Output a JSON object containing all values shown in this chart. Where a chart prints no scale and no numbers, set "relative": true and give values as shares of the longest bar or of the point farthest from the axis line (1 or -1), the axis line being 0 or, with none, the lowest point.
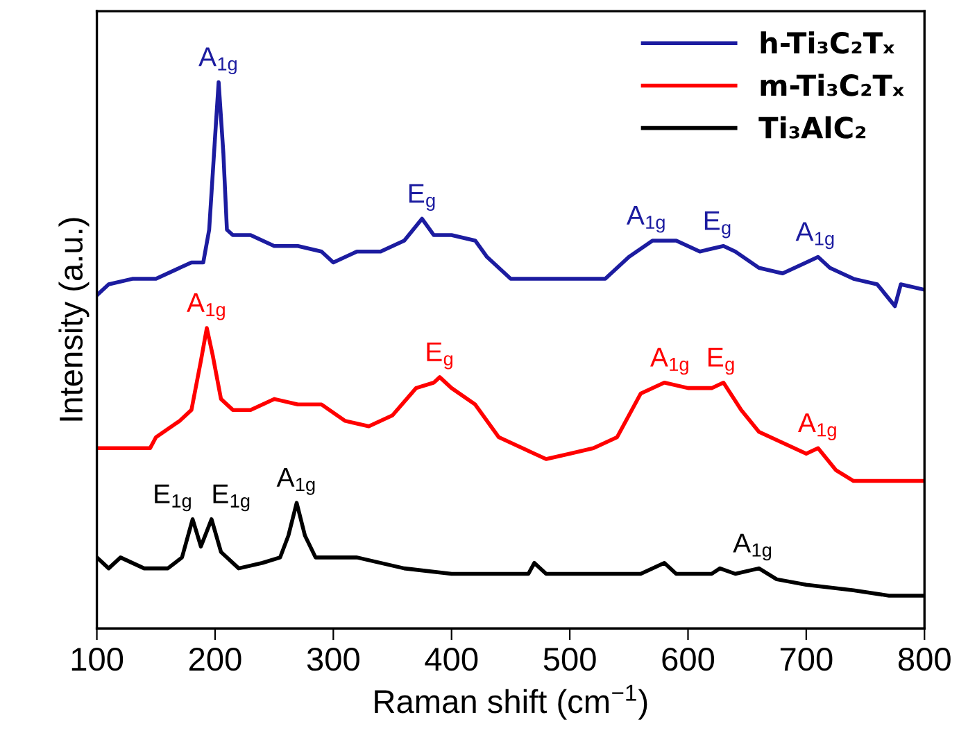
{
  "chart_data": {
    "type": "line",
    "relative": true,
    "xlabel": "Raman shift (cm$^{−1}$)",
    "ylabel": "Intensity (a.u.)",
    "xlim": [
      100,
      800
    ],
    "xticks": [
      100,
      200,
      300,
      400,
      500,
      600,
      700,
      800
    ],
    "tick_labels": "x",
    "grid": false,
    "legend": "top right",
    "line_style": "solid",
    "marker": "none",
    "series": [
      {
        "name": "h-Ti₃C₂Tₓ",
        "color": "#1c1ca0",
        "x": [
          100,
          110,
          130,
          150,
          170,
          180,
          190,
          195,
          200,
          203,
          207,
          210,
          215,
          230,
          250,
          270,
          290,
          300,
          320,
          340,
          360,
          375,
          385,
          400,
          420,
          430,
          450,
          470,
          490,
          510,
          530,
          550,
          570,
          590,
          610,
          630,
          640,
          660,
          680,
          700,
          710,
          720,
          740,
          760,
          775,
          780,
          800
        ],
        "values": [
          0.61,
          0.63,
          0.64,
          0.64,
          0.66,
          0.67,
          0.67,
          0.73,
          0.9,
          1.0,
          0.87,
          0.73,
          0.72,
          0.72,
          0.7,
          0.7,
          0.69,
          0.67,
          0.69,
          0.69,
          0.71,
          0.75,
          0.72,
          0.72,
          0.71,
          0.68,
          0.64,
          0.64,
          0.64,
          0.64,
          0.64,
          0.68,
          0.71,
          0.71,
          0.69,
          0.7,
          0.69,
          0.66,
          0.65,
          0.67,
          0.68,
          0.66,
          0.64,
          0.63,
          0.59,
          0.63,
          0.62
        ]
      },
      {
        "name": "m-Ti₃C₂Tₓ",
        "color": "#ff0000",
        "x": [
          100,
          130,
          145,
          150,
          170,
          180,
          188,
          193,
          198,
          205,
          215,
          230,
          250,
          270,
          290,
          310,
          330,
          350,
          370,
          385,
          390,
          400,
          420,
          440,
          460,
          480,
          500,
          520,
          540,
          560,
          580,
          600,
          620,
          630,
          645,
          660,
          680,
          700,
          710,
          725,
          740,
          760,
          780,
          800
        ],
        "values": [
          0.33,
          0.33,
          0.33,
          0.35,
          0.38,
          0.4,
          0.49,
          0.55,
          0.5,
          0.42,
          0.4,
          0.4,
          0.42,
          0.41,
          0.41,
          0.38,
          0.37,
          0.39,
          0.44,
          0.45,
          0.46,
          0.44,
          0.41,
          0.35,
          0.33,
          0.31,
          0.32,
          0.33,
          0.35,
          0.43,
          0.45,
          0.44,
          0.44,
          0.45,
          0.4,
          0.36,
          0.34,
          0.32,
          0.33,
          0.29,
          0.27,
          0.27,
          0.27,
          0.27
        ]
      },
      {
        "name": "Ti₃AlC₂",
        "color": "#000000",
        "x": [
          100,
          110,
          120,
          140,
          160,
          172,
          181,
          188,
          197,
          205,
          220,
          240,
          255,
          262,
          269,
          276,
          285,
          320,
          360,
          400,
          440,
          465,
          470,
          480,
          520,
          560,
          580,
          590,
          620,
          627,
          640,
          660,
          675,
          700,
          740,
          770,
          800
        ],
        "values": [
          0.13,
          0.11,
          0.13,
          0.11,
          0.11,
          0.13,
          0.2,
          0.15,
          0.2,
          0.14,
          0.11,
          0.12,
          0.13,
          0.17,
          0.23,
          0.17,
          0.13,
          0.13,
          0.11,
          0.1,
          0.1,
          0.1,
          0.12,
          0.1,
          0.1,
          0.1,
          0.12,
          0.1,
          0.1,
          0.11,
          0.1,
          0.11,
          0.09,
          0.08,
          0.07,
          0.06,
          0.06
        ]
      }
    ],
    "annotations": [
      {
        "text": "A$_{1g}$",
        "x": 203,
        "y": 1.0
      },
      {
        "text": "E$_{g}$",
        "x": 375,
        "y": 0.75
      },
      {
        "text": "A$_{1g}$",
        "x": 565,
        "y": 0.71
      },
      {
        "text": "E$_{g}$",
        "x": 625,
        "y": 0.7
      },
      {
        "text": "A$_{1g}$",
        "x": 708,
        "y": 0.68
      },
      {
        "text": "A$_{1g}$",
        "x": 193,
        "y": 0.55
      },
      {
        "text": "E$_{g}$",
        "x": 390,
        "y": 0.46
      },
      {
        "text": "A$_{1g}$",
        "x": 585,
        "y": 0.45
      },
      {
        "text": "E$_{g}$",
        "x": 628,
        "y": 0.45
      },
      {
        "text": "A$_{1g}$",
        "x": 710,
        "y": 0.33
      },
      {
        "text": "E$_{1g}$",
        "x": 178,
        "y": 0.2
      },
      {
        "text": "E$_{1g}$",
        "x": 200,
        "y": 0.2
      },
      {
        "text": "A$_{1g}$",
        "x": 269,
        "y": 0.23
      },
      {
        "text": "A$_{1g}$",
        "x": 655,
        "y": 0.11
      }
    ]
  }
}
